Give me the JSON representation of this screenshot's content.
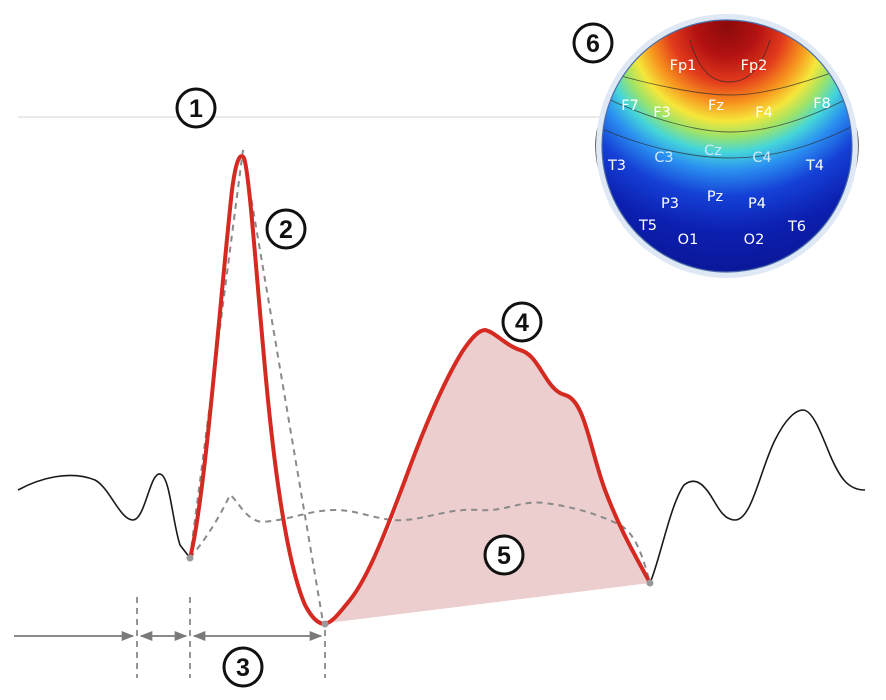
{
  "markers": {
    "m1": "1",
    "m2": "2",
    "m3": "3",
    "m4": "4",
    "m5": "5",
    "m6": "6"
  },
  "colors": {
    "trace": "#1a1a1a",
    "highlight": "#d42a21",
    "dashed": "#8a8a8a",
    "fill": "#e8c6c4",
    "guide": "#d6d6d6",
    "arrow": "#7a7a7a",
    "electrode_light": "#ffffff",
    "electrode_dark": "#cfe8ff"
  },
  "topomap": {
    "electrodes": [
      {
        "id": "Fp1",
        "label": "Fp1",
        "tone": "light"
      },
      {
        "id": "Fp2",
        "label": "Fp2",
        "tone": "light"
      },
      {
        "id": "F7",
        "label": "F7",
        "tone": "light"
      },
      {
        "id": "F3",
        "label": "F3",
        "tone": "light"
      },
      {
        "id": "Fz",
        "label": "Fz",
        "tone": "light"
      },
      {
        "id": "F4",
        "label": "F4",
        "tone": "light"
      },
      {
        "id": "F8",
        "label": "F8",
        "tone": "light"
      },
      {
        "id": "T3",
        "label": "T3",
        "tone": "light"
      },
      {
        "id": "C3",
        "label": "C3",
        "tone": "dark"
      },
      {
        "id": "Cz",
        "label": "Cz",
        "tone": "dark"
      },
      {
        "id": "C4",
        "label": "C4",
        "tone": "dark"
      },
      {
        "id": "T4",
        "label": "T4",
        "tone": "light"
      },
      {
        "id": "P3",
        "label": "P3",
        "tone": "light"
      },
      {
        "id": "Pz",
        "label": "Pz",
        "tone": "light"
      },
      {
        "id": "P4",
        "label": "P4",
        "tone": "light"
      },
      {
        "id": "T5",
        "label": "T5",
        "tone": "light"
      },
      {
        "id": "O1",
        "label": "O1",
        "tone": "light"
      },
      {
        "id": "O2",
        "label": "O2",
        "tone": "light"
      },
      {
        "id": "T6",
        "label": "T6",
        "tone": "light"
      }
    ]
  }
}
